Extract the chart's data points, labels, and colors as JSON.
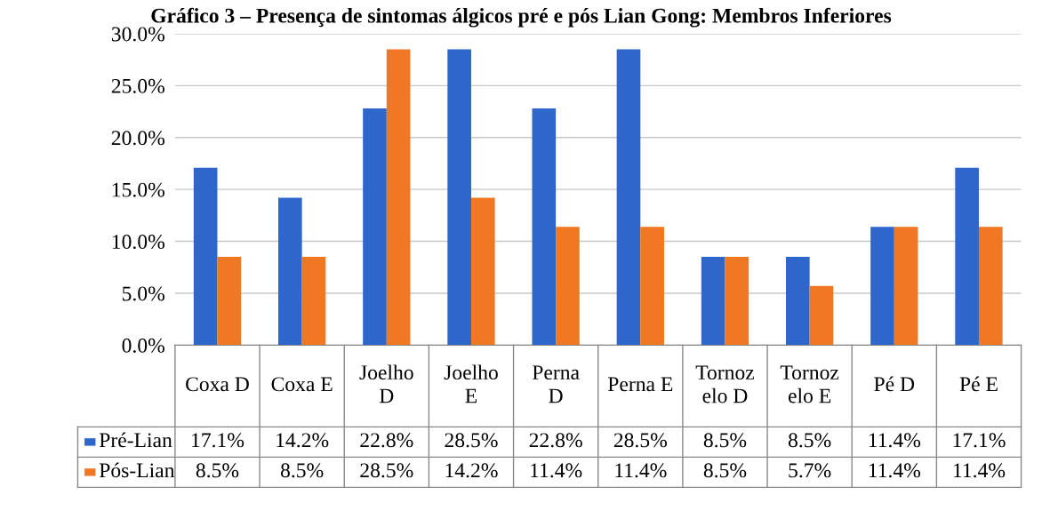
{
  "chart_data": {
    "type": "bar",
    "title": "Gráfico 3 – Presença de sintomas álgicos pré e pós Lian Gong: Membros Inferiores",
    "categories": [
      "Coxa D",
      "Coxa E",
      "Joelho\nD",
      "Joelho\nE",
      "Perna\nD",
      "Perna E",
      "Tornoz\nelo D",
      "Tornoz\nelo E",
      "Pé D",
      "Pé E"
    ],
    "series": [
      {
        "name": "Pré-Lian",
        "color": "#2f66cc",
        "values": [
          17.1,
          14.2,
          22.8,
          28.5,
          22.8,
          28.5,
          8.5,
          8.5,
          11.4,
          17.1
        ],
        "value_labels": [
          "17.1%",
          "14.2%",
          "22.8%",
          "28.5%",
          "22.8%",
          "28.5%",
          "8.5%",
          "8.5%",
          "11.4%",
          "17.1%"
        ]
      },
      {
        "name": "Pós-Lian",
        "color": "#f07822",
        "values": [
          8.5,
          8.5,
          28.5,
          14.2,
          11.4,
          11.4,
          8.5,
          5.7,
          11.4,
          11.4
        ],
        "value_labels": [
          "8.5%",
          "8.5%",
          "28.5%",
          "14.2%",
          "11.4%",
          "11.4%",
          "8.5%",
          "5.7%",
          "11.4%",
          "11.4%"
        ]
      }
    ],
    "ylim": [
      0,
      30
    ],
    "yticks": [
      {
        "value": 0,
        "label": "0.0%"
      },
      {
        "value": 5,
        "label": "5.0%"
      },
      {
        "value": 10,
        "label": "10.0%"
      },
      {
        "value": 15,
        "label": "15.0%"
      },
      {
        "value": 20,
        "label": "20.0%"
      },
      {
        "value": 25,
        "label": "25.0%"
      },
      {
        "value": 30,
        "label": "30.0%"
      }
    ],
    "grid": "y",
    "legend": "bottom left"
  }
}
